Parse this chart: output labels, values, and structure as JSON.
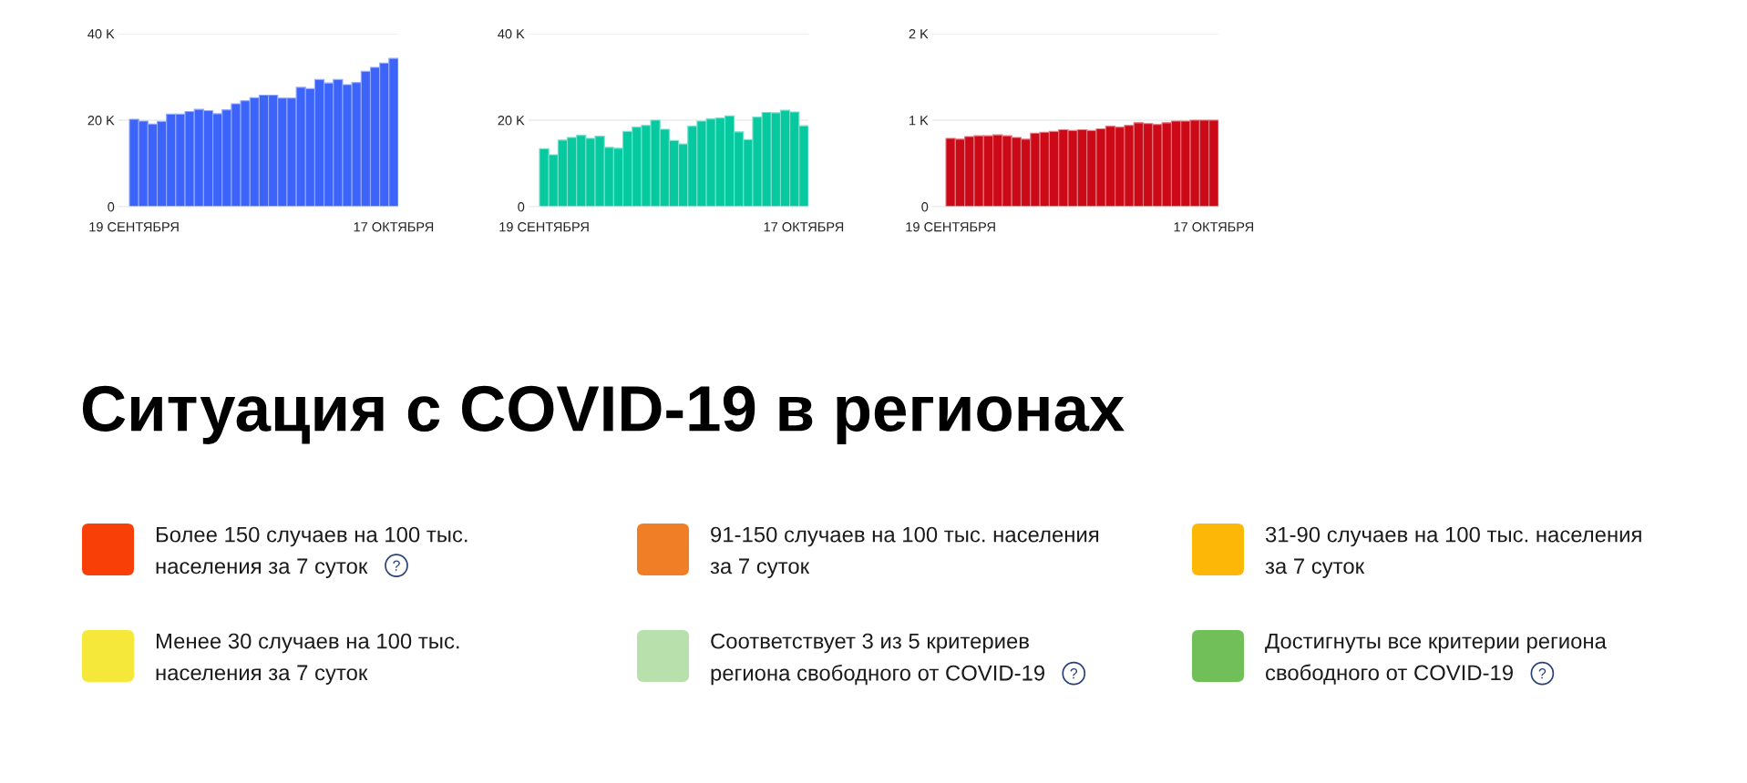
{
  "chart_data": [
    {
      "type": "bar",
      "categories": [
        "19 СЕНТЯБРЯ",
        null,
        null,
        null,
        null,
        null,
        null,
        null,
        null,
        null,
        null,
        null,
        null,
        null,
        null,
        null,
        null,
        null,
        null,
        null,
        null,
        null,
        null,
        null,
        null,
        null,
        null,
        null,
        "17 ОКТЯБРЯ"
      ],
      "values": [
        20200,
        19800,
        19100,
        19700,
        21400,
        21400,
        22000,
        22500,
        22200,
        21500,
        22400,
        23800,
        24500,
        25200,
        25800,
        25800,
        25100,
        25100,
        27600,
        27300,
        29400,
        28600,
        29400,
        28200,
        28700,
        31300,
        32200,
        33200,
        34300
      ],
      "color": "#3c64fb",
      "ylim": [
        0,
        40000
      ],
      "yticks": [
        0,
        {
          "value": 20000,
          "label": "20 K"
        },
        {
          "value": 40000,
          "label": "40 K"
        }
      ],
      "grid": "y"
    },
    {
      "type": "bar",
      "categories": [
        "19 СЕНТЯБРЯ",
        null,
        null,
        null,
        null,
        null,
        null,
        null,
        null,
        null,
        null,
        null,
        null,
        null,
        null,
        null,
        null,
        null,
        null,
        null,
        null,
        null,
        null,
        null,
        null,
        null,
        null,
        null,
        "17 ОКТЯБРЯ"
      ],
      "values": [
        13400,
        12000,
        15400,
        16000,
        16500,
        15800,
        16300,
        13700,
        13500,
        17400,
        18400,
        18800,
        20000,
        17900,
        15300,
        14500,
        18600,
        19800,
        20300,
        20500,
        21000,
        17300,
        15500,
        20700,
        21800,
        21700,
        22300,
        21900,
        18700
      ],
      "color": "#06c9a0",
      "ylim": [
        0,
        40000
      ],
      "yticks": [
        0,
        {
          "value": 20000,
          "label": "20 K"
        },
        {
          "value": 40000,
          "label": "40 K"
        }
      ],
      "grid": "y"
    },
    {
      "type": "bar",
      "categories": [
        "19 СЕНТЯБРЯ",
        null,
        null,
        null,
        null,
        null,
        null,
        null,
        null,
        null,
        null,
        null,
        null,
        null,
        null,
        null,
        null,
        null,
        null,
        null,
        null,
        null,
        null,
        null,
        null,
        null,
        null,
        null,
        "17 ОКТЯБРЯ"
      ],
      "values": [
        790,
        780,
        810,
        820,
        820,
        830,
        820,
        800,
        780,
        850,
        860,
        870,
        890,
        880,
        890,
        880,
        900,
        930,
        920,
        940,
        970,
        960,
        950,
        970,
        990,
        990,
        1000,
        1000,
        1000
      ],
      "color": "#cc0a17",
      "ylim": [
        0,
        2000
      ],
      "yticks": [
        0,
        {
          "value": 1000,
          "label": "1 K"
        },
        {
          "value": 2000,
          "label": "2 K"
        }
      ],
      "grid": "y"
    },
    {
      "type": "other",
      "title": "Ситуация с COVID-19 в регионах",
      "categories": [
        "Более 150 случаев на 100 тыс.\nнаселения за 7 суток",
        "91-150 случаев на 100 тыс. населения\nза 7 суток",
        "31-90 случаев на 100 тыс. населения\nза 7 суток",
        "Менее 30 случаев на 100 тыс.\nнаселения за 7 суток",
        "Соответствует 3 из 5 критериев\nрегиона свободного от COVID-19",
        "Достигнуты все критерии региона\nсвободного от COVID-19"
      ],
      "colors": [
        "#f83f07",
        "#f07e26",
        "#fdb706",
        "#f5e83a",
        "#b7e0ad",
        "#70bf59"
      ]
    }
  ]
}
